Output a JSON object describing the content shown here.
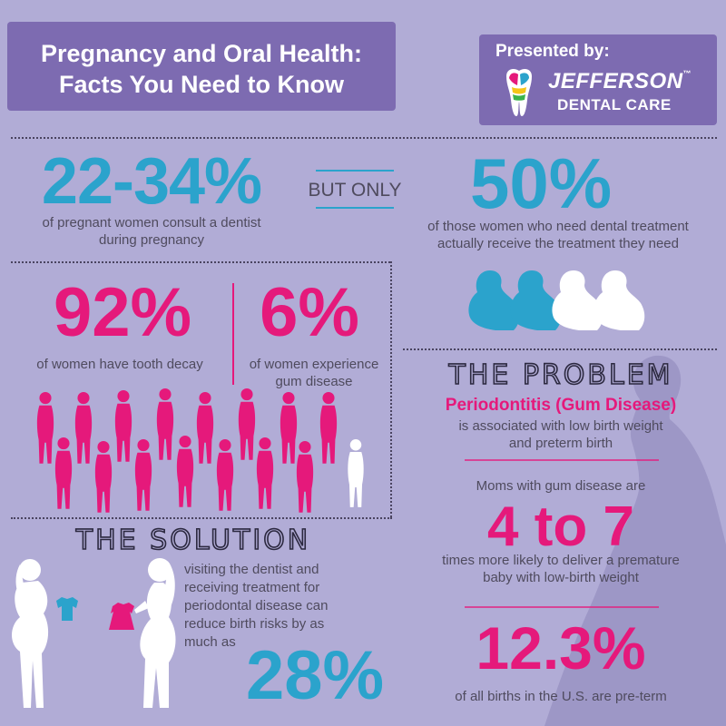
{
  "header": {
    "title_line1": "Pregnancy and Oral Health:",
    "title_line2": "Facts You Need to Know",
    "presented_by": "Presented by:",
    "brand_name": "JEFFERSON",
    "brand_tm": "™",
    "brand_sub": "DENTAL CARE",
    "logo_icon": "tooth-logo-icon"
  },
  "stats": {
    "consult": {
      "value": "22-34%",
      "caption_line1": "of pregnant women consult a dentist",
      "caption_line2": "during pregnancy"
    },
    "but_only": "BUT ONLY",
    "receive": {
      "value": "50%",
      "caption_line1": "of those women who need dental treatment",
      "caption_line2": "actually receive the treatment they need"
    },
    "tooth_decay": {
      "value": "92%",
      "caption": "of women have tooth decay"
    },
    "gum_disease": {
      "value": "6%",
      "caption_line1": "of women experience",
      "caption_line2": "gum disease"
    }
  },
  "problem": {
    "heading": "THE PROBLEM",
    "subheading": "Periodontitis (Gum Disease)",
    "text_line1": "is associated with low birth weight",
    "text_line2": "and preterm birth",
    "moms_text": "Moms with gum disease are",
    "ratio": "4 to 7",
    "ratio_line1": "times more likely to deliver a premature",
    "ratio_line2": "baby with low-birth weight",
    "preterm_value": "12.3%",
    "preterm_caption": "of all births in the U.S. are pre-term"
  },
  "solution": {
    "heading": "THE SOLUTION",
    "text_line1": "visiting the dentist and",
    "text_line2": "receiving treatment for",
    "text_line3": "periodontal disease can",
    "text_line4": "reduce birth risks by as",
    "text_line5": "much as",
    "value": "28%"
  },
  "colors": {
    "background": "#b1acd6",
    "header_box": "#7d6bb1",
    "blue": "#2ba3cc",
    "pink": "#e5197b",
    "white": "#ffffff"
  }
}
